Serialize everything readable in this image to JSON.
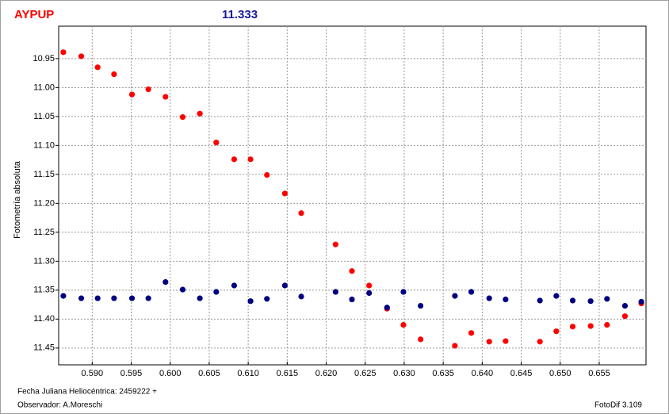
{
  "chart_data": {
    "type": "scatter",
    "title": "AYPUP",
    "subtitle": "11.333",
    "ylabel": "Fotometría absoluta",
    "xlabel": "Fecha Juliana Heliocéntrica: 2459222 +",
    "observer": "Observador: A.Moreschi",
    "software": "FotoDif 3.109",
    "x": [
      0.5863,
      0.5886,
      0.5907,
      0.5928,
      0.5951,
      0.5972,
      0.5994,
      0.6016,
      0.6038,
      0.6059,
      0.6082,
      0.6103,
      0.6124,
      0.6147,
      0.6168,
      0.6212,
      0.6233,
      0.6255,
      0.6278,
      0.6299,
      0.6321,
      0.6365,
      0.6386,
      0.6409,
      0.643,
      0.6474,
      0.6495,
      0.6516,
      0.6539,
      0.656,
      0.6583,
      0.6604
    ],
    "series": [
      {
        "color": "#ff0000",
        "values": [
          10.939,
          10.946,
          10.965,
          10.977,
          11.012,
          11.003,
          11.016,
          11.051,
          11.045,
          11.095,
          11.124,
          11.124,
          11.151,
          11.183,
          11.217,
          11.271,
          11.317,
          11.342,
          11.382,
          11.41,
          11.435,
          11.446,
          11.424,
          11.439,
          11.438,
          11.439,
          11.421,
          11.413,
          11.412,
          11.41,
          11.395,
          11.373
        ]
      },
      {
        "color": "#000080",
        "values": [
          11.36,
          11.364,
          11.364,
          11.364,
          11.364,
          11.364,
          11.336,
          11.349,
          11.364,
          11.353,
          11.342,
          11.369,
          11.365,
          11.342,
          11.361,
          11.353,
          11.366,
          11.355,
          11.38,
          11.353,
          11.377,
          11.36,
          11.353,
          11.364,
          11.366,
          11.368,
          11.36,
          11.368,
          11.369,
          11.365,
          11.377,
          11.37
        ]
      }
    ],
    "xlim": [
      0.5857,
      0.661
    ],
    "ylim": [
      10.894,
      11.479
    ],
    "y_inverted": true,
    "xticks": [
      {
        "value": 0.59,
        "label": "0.590"
      },
      0.595,
      {
        "value": 0.6,
        "label": "0.600"
      },
      0.605,
      {
        "value": 0.61,
        "label": "0.610"
      },
      0.615,
      {
        "value": 0.62,
        "label": "0.620"
      },
      0.625,
      {
        "value": 0.63,
        "label": "0.630"
      },
      0.635,
      {
        "value": 0.64,
        "label": "0.640"
      },
      0.645,
      {
        "value": 0.65,
        "label": "0.650"
      },
      0.655
    ],
    "yticks": [
      10.95,
      {
        "value": 11,
        "label": "11.00"
      },
      11.05,
      {
        "value": 11.1,
        "label": "11.10"
      },
      11.15,
      {
        "value": 11.2,
        "label": "11.20"
      },
      11.25,
      {
        "value": 11.3,
        "label": "11.30"
      },
      11.35,
      {
        "value": 11.4,
        "label": "11.40"
      },
      11.45
    ],
    "grid": true
  }
}
